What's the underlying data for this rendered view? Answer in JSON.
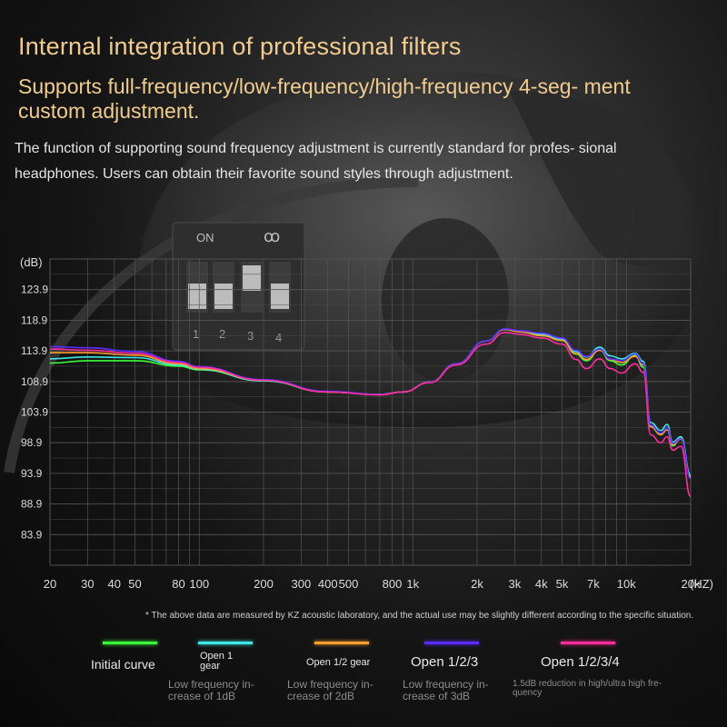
{
  "header": {
    "title": "Internal integration of professional filters",
    "subtitle": "Supports full-frequency/low-frequency/high-frequency 4-seg- ment custom adjustment.",
    "description": "The function of supporting sound frequency adjustment is currently standard for profes- sional headphones. Users can obtain their favorite sound styles through adjustment."
  },
  "switch_panel": {
    "on_label": "ON",
    "logo_text": "ꝏ",
    "numbers": [
      "1",
      "2",
      "3",
      "4"
    ]
  },
  "chart_data": {
    "type": "line",
    "ylabel": "(dB)",
    "xlabel": "(HZ)",
    "x_scale": "log",
    "xlim": [
      20,
      20000
    ],
    "ylim": [
      78.9,
      128.9
    ],
    "y_ticks": [
      123.9,
      118.9,
      113.9,
      108.9,
      103.9,
      98.9,
      93.9,
      88.9,
      83.9
    ],
    "x_ticks": [
      {
        "label": "20",
        "value": 20
      },
      {
        "label": "30",
        "value": 30
      },
      {
        "label": "40",
        "value": 40
      },
      {
        "label": "50",
        "value": 50
      },
      {
        "label": "80",
        "value": 80
      },
      {
        "label": "100",
        "value": 100
      },
      {
        "label": "200",
        "value": 200
      },
      {
        "label": "300",
        "value": 300
      },
      {
        "label": "400",
        "value": 400
      },
      {
        "label": "500",
        "value": 500
      },
      {
        "label": "800",
        "value": 800
      },
      {
        "label": "1k",
        "value": 1000
      },
      {
        "label": "2k",
        "value": 2000
      },
      {
        "label": "3k",
        "value": 3000
      },
      {
        "label": "4k",
        "value": 4000
      },
      {
        "label": "5k",
        "value": 5000
      },
      {
        "label": "7k",
        "value": 7000
      },
      {
        "label": "10k",
        "value": 10000
      },
      {
        "label": "20k",
        "value": 20000
      }
    ],
    "grid": true,
    "series": [
      {
        "name": "Initial curve",
        "color": "#3cff3c",
        "points": [
          [
            20,
            111.9
          ],
          [
            30,
            112.3
          ],
          [
            50,
            112.3
          ],
          [
            80,
            111.4
          ],
          [
            100,
            110.8
          ],
          [
            200,
            109.0
          ],
          [
            400,
            107.2
          ],
          [
            700,
            106.8
          ],
          [
            900,
            107.2
          ],
          [
            1200,
            108.8
          ],
          [
            1600,
            111.8
          ],
          [
            2200,
            115.5
          ],
          [
            2700,
            117.4
          ],
          [
            3200,
            117.0
          ],
          [
            4000,
            116.4
          ],
          [
            5000,
            115.6
          ],
          [
            5800,
            113.4
          ],
          [
            6500,
            112.3
          ],
          [
            7500,
            114.1
          ],
          [
            8400,
            112.3
          ],
          [
            9500,
            111.6
          ],
          [
            11000,
            113.2
          ],
          [
            12000,
            111.2
          ],
          [
            13000,
            101.6
          ],
          [
            14500,
            100.4
          ],
          [
            15500,
            101.4
          ],
          [
            16500,
            98.4
          ],
          [
            18000,
            99.8
          ],
          [
            20000,
            93.4
          ]
        ]
      },
      {
        "name": "Open 1 gear",
        "color": "#40e6e6",
        "points": [
          [
            20,
            112.6
          ],
          [
            30,
            112.9
          ],
          [
            50,
            112.8
          ],
          [
            80,
            111.6
          ],
          [
            100,
            110.9
          ],
          [
            200,
            109.0
          ],
          [
            400,
            107.2
          ],
          [
            700,
            106.8
          ],
          [
            900,
            107.2
          ],
          [
            1200,
            108.8
          ],
          [
            1600,
            111.8
          ],
          [
            2200,
            115.5
          ],
          [
            2700,
            117.4
          ],
          [
            3200,
            117.1
          ],
          [
            4000,
            116.6
          ],
          [
            5000,
            115.8
          ],
          [
            5800,
            113.8
          ],
          [
            6500,
            112.9
          ],
          [
            7500,
            114.5
          ],
          [
            8400,
            113.1
          ],
          [
            9500,
            112.6
          ],
          [
            11000,
            113.5
          ],
          [
            12000,
            112.2
          ],
          [
            13000,
            102.2
          ],
          [
            14500,
            100.9
          ],
          [
            15500,
            101.9
          ],
          [
            16500,
            99.0
          ],
          [
            18000,
            99.9
          ],
          [
            20000,
            93.6
          ]
        ]
      },
      {
        "name": "Open 1/2 gear",
        "color": "#ff9d2e",
        "points": [
          [
            20,
            113.6
          ],
          [
            30,
            113.6
          ],
          [
            50,
            113.2
          ],
          [
            80,
            111.8
          ],
          [
            100,
            111.0
          ],
          [
            200,
            109.1
          ],
          [
            400,
            107.2
          ],
          [
            700,
            106.8
          ],
          [
            900,
            107.2
          ],
          [
            1200,
            108.8
          ],
          [
            1600,
            111.8
          ],
          [
            2200,
            115.5
          ],
          [
            2700,
            117.4
          ],
          [
            3200,
            117.0
          ],
          [
            4000,
            116.4
          ],
          [
            5000,
            115.6
          ],
          [
            5800,
            113.5
          ],
          [
            6500,
            112.5
          ],
          [
            7500,
            114.0
          ],
          [
            8400,
            112.5
          ],
          [
            9500,
            112.0
          ],
          [
            11000,
            113.0
          ],
          [
            12000,
            111.6
          ],
          [
            13000,
            101.5
          ],
          [
            14500,
            100.2
          ],
          [
            15500,
            101.0
          ],
          [
            16500,
            98.6
          ],
          [
            18000,
            99.5
          ],
          [
            20000,
            93.2
          ]
        ]
      },
      {
        "name": "Open 1/2/3",
        "color": "#5a2cff",
        "points": [
          [
            20,
            114.6
          ],
          [
            30,
            114.4
          ],
          [
            50,
            113.8
          ],
          [
            80,
            112.2
          ],
          [
            100,
            111.3
          ],
          [
            200,
            109.2
          ],
          [
            400,
            107.3
          ],
          [
            700,
            106.8
          ],
          [
            900,
            107.2
          ],
          [
            1200,
            108.8
          ],
          [
            1600,
            111.8
          ],
          [
            2200,
            115.5
          ],
          [
            2700,
            117.5
          ],
          [
            3200,
            117.2
          ],
          [
            4000,
            116.8
          ],
          [
            5000,
            116.0
          ],
          [
            5800,
            114.0
          ],
          [
            6500,
            113.0
          ],
          [
            7500,
            114.2
          ],
          [
            8400,
            112.6
          ],
          [
            9500,
            112.3
          ],
          [
            11000,
            113.4
          ],
          [
            12000,
            111.8
          ],
          [
            13000,
            101.8
          ],
          [
            14500,
            100.5
          ],
          [
            15500,
            101.4
          ],
          [
            16500,
            98.8
          ],
          [
            18000,
            99.6
          ],
          [
            20000,
            93.0
          ]
        ]
      },
      {
        "name": "Open 1/2/3/4",
        "color": "#ff2d9c",
        "points": [
          [
            20,
            114.2
          ],
          [
            30,
            114.0
          ],
          [
            50,
            113.5
          ],
          [
            80,
            112.0
          ],
          [
            100,
            111.2
          ],
          [
            200,
            109.1
          ],
          [
            400,
            107.2
          ],
          [
            700,
            106.7
          ],
          [
            900,
            107.2
          ],
          [
            1200,
            108.7
          ],
          [
            1600,
            111.6
          ],
          [
            2200,
            115.0
          ],
          [
            2700,
            116.9
          ],
          [
            3200,
            116.6
          ],
          [
            4000,
            116.0
          ],
          [
            5000,
            115.0
          ],
          [
            5800,
            112.5
          ],
          [
            6500,
            111.0
          ],
          [
            7500,
            112.6
          ],
          [
            8400,
            111.0
          ],
          [
            9500,
            110.3
          ],
          [
            11000,
            111.8
          ],
          [
            12000,
            110.4
          ],
          [
            13000,
            100.2
          ],
          [
            14500,
            98.9
          ],
          [
            15500,
            99.9
          ],
          [
            16500,
            97.7
          ],
          [
            18000,
            98.3
          ],
          [
            20000,
            90.1
          ]
        ]
      }
    ]
  },
  "footnote": "* The above data are measured by KZ acoustic laboratory, and the actual use may be slightly different according to the specific situation.",
  "legend": [
    {
      "label": "Initial curve",
      "description": "",
      "color": "#3cff3c"
    },
    {
      "label": "Open 1 gear",
      "description": "Low frequency in- crease of 1dB",
      "color": "#40e6e6"
    },
    {
      "label": "Open 1/2 gear",
      "description": "Low frequency in- crease of 2dB",
      "color": "#ff9d2e"
    },
    {
      "label": "Open 1/2/3",
      "description": "Low frequency in- crease of 3dB",
      "color": "#5a2cff"
    },
    {
      "label": "Open 1/2/3/4",
      "description": "1.5dB reduction in high/ultra high fre- quency",
      "color": "#ff2d9c"
    }
  ]
}
